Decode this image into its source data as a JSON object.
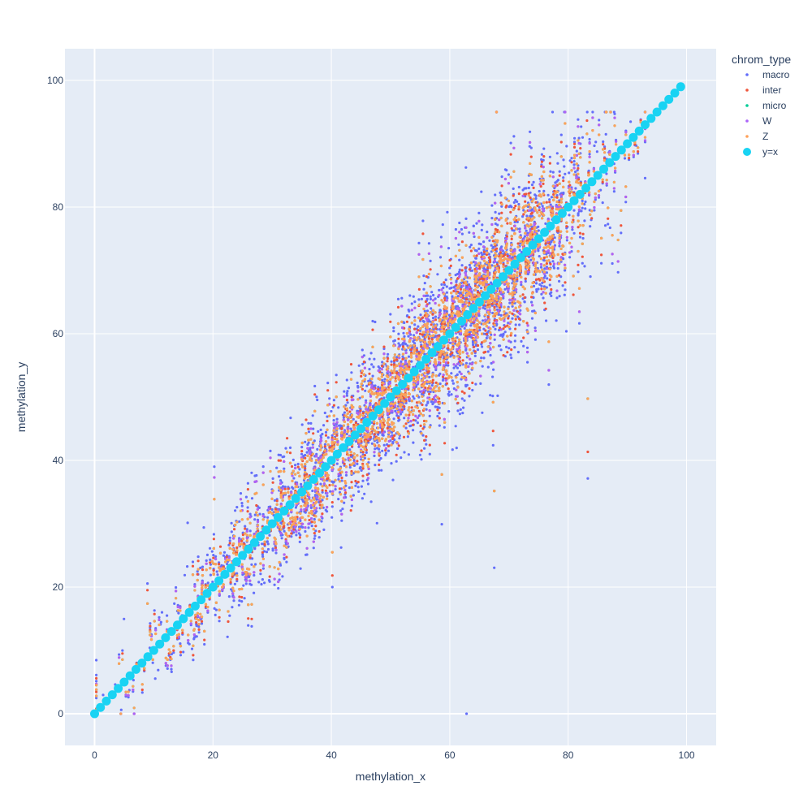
{
  "chart_data": {
    "type": "scatter",
    "title": "",
    "xlabel": "methylation_x",
    "ylabel": "methylation_y",
    "xlim": [
      -5,
      105
    ],
    "ylim": [
      -5,
      105
    ],
    "x_ticks": [
      0,
      20,
      40,
      60,
      80,
      100
    ],
    "y_ticks": [
      0,
      20,
      40,
      60,
      80,
      100
    ],
    "grid": true,
    "legend": {
      "title": "chrom_type",
      "placement": "top-right"
    },
    "series": [
      {
        "name": "macro",
        "color": "#636efa",
        "marker": "dot",
        "spread": 5.5,
        "points_shown_approx": 2600
      },
      {
        "name": "inter",
        "color": "#ef553b",
        "marker": "dot",
        "spread": 5.0,
        "points_shown_approx": 1600
      },
      {
        "name": "micro",
        "color": "#00cc96",
        "marker": "dot",
        "spread": 4.0,
        "points_shown_approx": 2600
      },
      {
        "name": "W",
        "color": "#ab63fa",
        "marker": "dot",
        "spread": 5.0,
        "points_shown_approx": 700
      },
      {
        "name": "Z",
        "color": "#ffa15a",
        "marker": "dot",
        "spread": 4.0,
        "points_shown_approx": 3200
      },
      {
        "name": "y=x",
        "color": "#19d3f3",
        "marker": "circle",
        "x": [
          0,
          1,
          2,
          3,
          4,
          5,
          6,
          7,
          8,
          9,
          10,
          11,
          12,
          13,
          14,
          15,
          16,
          17,
          18,
          19,
          20,
          21,
          22,
          23,
          24,
          25,
          26,
          27,
          28,
          29,
          30,
          31,
          32,
          33,
          34,
          35,
          36,
          37,
          38,
          39,
          40,
          41,
          42,
          43,
          44,
          45,
          46,
          47,
          48,
          49,
          50,
          51,
          52,
          53,
          54,
          55,
          56,
          57,
          58,
          59,
          60,
          61,
          62,
          63,
          64,
          65,
          66,
          67,
          68,
          69,
          70,
          71,
          72,
          73,
          74,
          75,
          76,
          77,
          78,
          79,
          80,
          81,
          82,
          83,
          84,
          85,
          86,
          87,
          88,
          89,
          90,
          91,
          92,
          93,
          94,
          95,
          96,
          97,
          98,
          99
        ],
        "y": [
          0,
          1,
          2,
          3,
          4,
          5,
          6,
          7,
          8,
          9,
          10,
          11,
          12,
          13,
          14,
          15,
          16,
          17,
          18,
          19,
          20,
          21,
          22,
          23,
          24,
          25,
          26,
          27,
          28,
          29,
          30,
          31,
          32,
          33,
          34,
          35,
          36,
          37,
          38,
          39,
          40,
          41,
          42,
          43,
          44,
          45,
          46,
          47,
          48,
          49,
          50,
          51,
          52,
          53,
          54,
          55,
          56,
          57,
          58,
          59,
          60,
          61,
          62,
          63,
          64,
          65,
          66,
          67,
          68,
          69,
          70,
          71,
          72,
          73,
          74,
          75,
          76,
          77,
          78,
          79,
          80,
          81,
          82,
          83,
          84,
          85,
          86,
          87,
          88,
          89,
          90,
          91,
          92,
          93,
          94,
          95,
          96,
          97,
          98,
          99
        ]
      }
    ],
    "density_shape": {
      "x_distribution": "concentrated between 30 and 90, peak near 65",
      "x_range": [
        0,
        100
      ]
    }
  }
}
